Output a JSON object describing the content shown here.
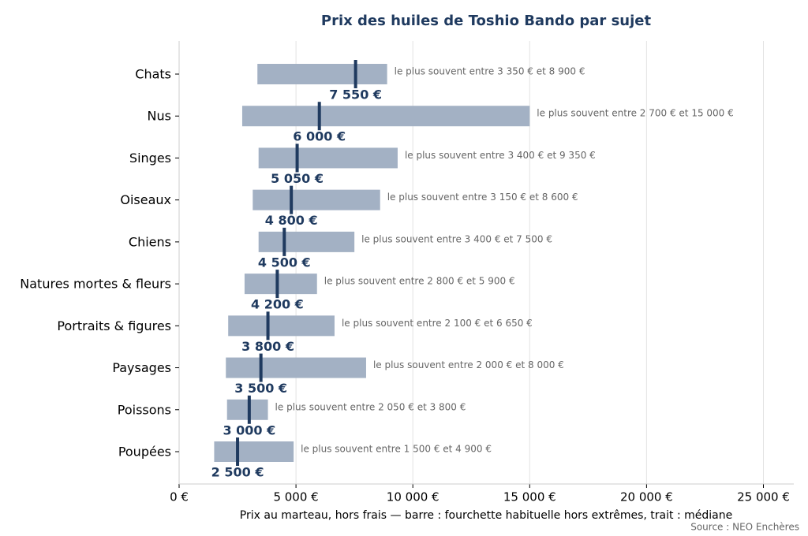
{
  "chart_data": {
    "type": "range",
    "title": "Prix des huiles de Toshio Bando par sujet",
    "xlabel": "Prix au marteau, hors frais — barre : fourchette habituelle hors extrêmes, trait : médiane",
    "source": "Source : NEO Enchères",
    "categories": [
      "Chats",
      "Nus",
      "Singes",
      "Oiseaux",
      "Chiens",
      "Natures mortes & fleurs",
      "Portraits & figures",
      "Paysages",
      "Poissons",
      "Poupées"
    ],
    "low": [
      3350,
      2700,
      3400,
      3150,
      3400,
      2800,
      2100,
      2000,
      2050,
      1500
    ],
    "high": [
      8900,
      15000,
      9350,
      8600,
      7500,
      5900,
      6650,
      8000,
      3800,
      4900
    ],
    "median": [
      7550,
      6000,
      5050,
      4800,
      4500,
      4200,
      3800,
      3500,
      3000,
      2500
    ],
    "median_labels": [
      "7 550 €",
      "6 000 €",
      "5 050 €",
      "4 800 €",
      "4 500 €",
      "4 200 €",
      "3 800 €",
      "3 500 €",
      "3 000 €",
      "2 500 €"
    ],
    "range_labels": [
      "le plus souvent entre 3 350 € et 8 900 €",
      "le plus souvent entre 2 700 € et 15 000 €",
      "le plus souvent entre 3 400 € et 9 350 €",
      "le plus souvent entre 3 150 € et 8 600 €",
      "le plus souvent entre 3 400 € et 7 500 €",
      "le plus souvent entre 2 800 € et 5 900 €",
      "le plus souvent entre 2 100 € et 6 650 €",
      "le plus souvent entre 2 000 € et 8 000 €",
      "le plus souvent entre 2 050 € et 3 800 €",
      "le plus souvent entre 1 500 € et 4 900 €"
    ],
    "bar_color": "#a3b1c4",
    "median_color": "#1f3a5f",
    "xlim": [
      0,
      26300
    ],
    "xticks": [
      {
        "value": 0,
        "label": "0 €"
      },
      {
        "value": 5000,
        "label": "5 000 €"
      },
      {
        "value": 10000,
        "label": "10 000 €"
      },
      {
        "value": 15000,
        "label": "15 000 €"
      },
      {
        "value": 20000,
        "label": "20 000 €"
      },
      {
        "value": 25000,
        "label": "25 000 €"
      }
    ],
    "grid": true
  }
}
